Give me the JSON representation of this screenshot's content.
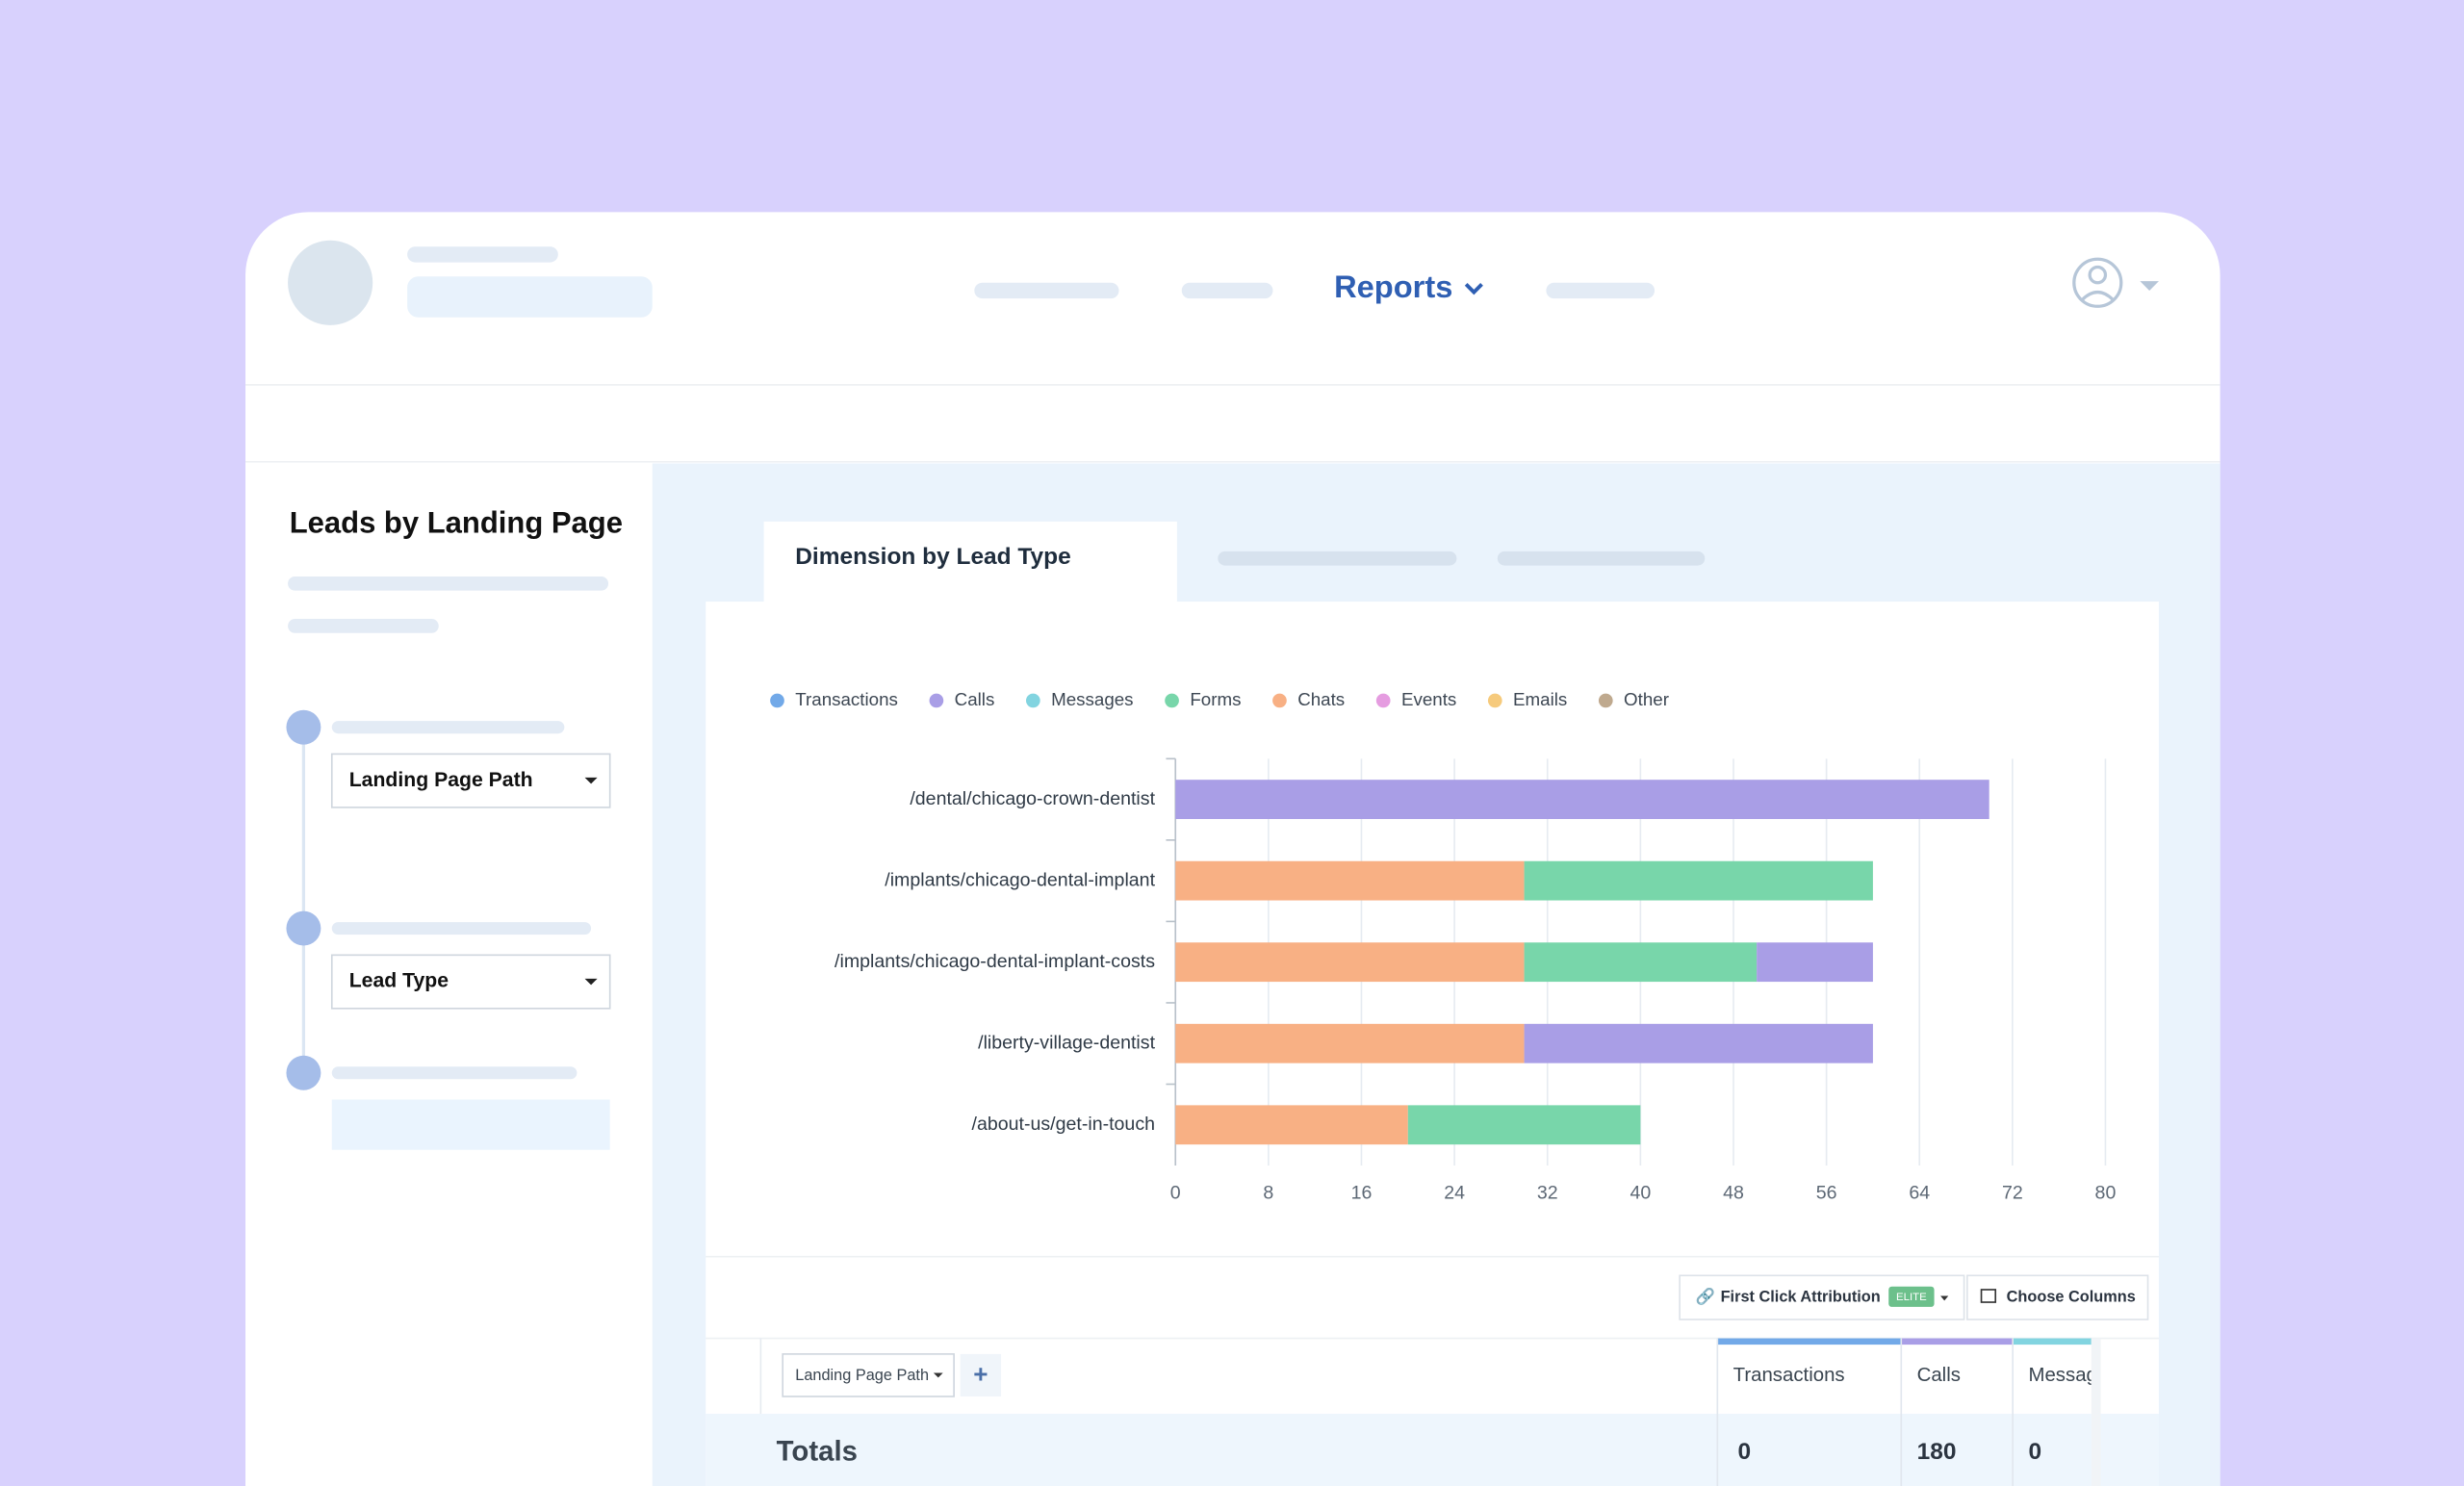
{
  "nav": {
    "active": "Reports"
  },
  "sidebar": {
    "title": "Leads by Landing Page",
    "steps": [
      "Landing Page Path",
      "Lead Type"
    ]
  },
  "tabs": {
    "active": "Dimension by Lead Type"
  },
  "chart_data": {
    "type": "bar",
    "orientation": "horizontal",
    "stacked": true,
    "categories": [
      "/dental/chicago-crown-dentist",
      "/implants/chicago-dental-implant",
      "/implants/chicago-dental-implant-costs",
      "/liberty-village-dentist",
      "/about-us/get-in-touch"
    ],
    "series": [
      {
        "name": "Transactions",
        "color": "#72a9e8",
        "values": [
          0,
          0,
          0,
          0,
          0
        ]
      },
      {
        "name": "Calls",
        "color": "#a99ee6",
        "values": [
          70,
          0,
          10,
          30,
          0
        ]
      },
      {
        "name": "Messages",
        "color": "#82d4e0",
        "values": [
          0,
          0,
          0,
          0,
          0
        ]
      },
      {
        "name": "Forms",
        "color": "#78d6aa",
        "values": [
          0,
          30,
          20,
          0,
          20
        ]
      },
      {
        "name": "Chats",
        "color": "#f8b084",
        "values": [
          0,
          30,
          30,
          30,
          20
        ]
      },
      {
        "name": "Events",
        "color": "#e59ce0",
        "values": [
          0,
          0,
          0,
          0,
          0
        ]
      },
      {
        "name": "Emails",
        "color": "#f6ca7c",
        "values": [
          0,
          0,
          0,
          0,
          0
        ]
      },
      {
        "name": "Other",
        "color": "#bfa98e",
        "values": [
          0,
          0,
          0,
          0,
          0
        ]
      }
    ],
    "xlim": [
      0,
      80
    ],
    "xticks": [
      0,
      8,
      16,
      24,
      32,
      40,
      48,
      56,
      64,
      72,
      80
    ],
    "grid": true,
    "legend": "top"
  },
  "toolbar": {
    "attribution": "First Click Attribution",
    "badge": "ELITE",
    "columns": "Choose Columns"
  },
  "table": {
    "dimension": "Landing Page Path",
    "add": "+",
    "headers": [
      "Transactions",
      "Calls",
      "Messages"
    ],
    "totals_label": "Totals",
    "totals": [
      "0",
      "180",
      "0"
    ]
  }
}
